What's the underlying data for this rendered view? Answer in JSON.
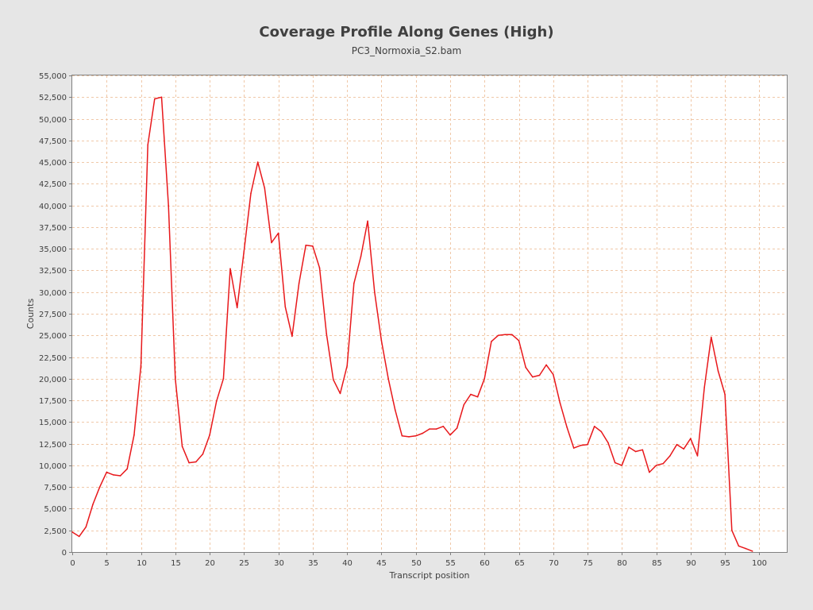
{
  "chart_data": {
    "type": "line",
    "title": "Coverage Profile Along Genes (High)",
    "subtitle": "PC3_Normoxia_S2.bam",
    "xlabel": "Transcript position",
    "ylabel": "Counts",
    "xlim": [
      0,
      104
    ],
    "ylim": [
      0,
      55000
    ],
    "x_ticks": [
      0,
      5,
      10,
      15,
      20,
      25,
      30,
      35,
      40,
      45,
      50,
      55,
      60,
      65,
      70,
      75,
      80,
      85,
      90,
      95,
      100
    ],
    "y_ticks": [
      0,
      2500,
      5000,
      7500,
      10000,
      12500,
      15000,
      17500,
      20000,
      22500,
      25000,
      27500,
      30000,
      32500,
      35000,
      37500,
      40000,
      42500,
      45000,
      47500,
      50000,
      52500,
      55000
    ],
    "x_tick_labels": [
      "0",
      "5",
      "10",
      "15",
      "20",
      "25",
      "30",
      "35",
      "40",
      "45",
      "50",
      "55",
      "60",
      "65",
      "70",
      "75",
      "80",
      "85",
      "90",
      "95",
      "100"
    ],
    "y_tick_labels": [
      "0",
      "2,500",
      "5,000",
      "7,500",
      "10,000",
      "12,500",
      "15,000",
      "17,500",
      "20,000",
      "22,500",
      "25,000",
      "27,500",
      "30,000",
      "32,500",
      "35,000",
      "37,500",
      "40,000",
      "42,500",
      "45,000",
      "47,500",
      "50,000",
      "52,500",
      "55,000"
    ],
    "grid": true,
    "line_color": "#e8181b",
    "grid_color": "#f0c8a8",
    "series": [
      {
        "x": [
          0,
          1,
          2,
          3,
          4,
          5,
          6,
          7,
          8,
          9,
          10,
          11,
          12,
          13,
          14,
          15,
          16,
          17,
          18,
          19,
          20,
          21,
          22,
          23,
          24,
          25,
          26,
          27,
          28,
          29,
          30,
          31,
          32,
          33,
          34,
          35,
          36,
          37,
          38,
          39,
          40,
          41,
          42,
          43,
          44,
          45,
          46,
          47,
          48,
          49,
          50,
          51,
          52,
          53,
          54,
          55,
          56,
          57,
          58,
          59,
          60,
          61,
          62,
          63,
          64,
          65,
          66,
          67,
          68,
          69,
          70,
          71,
          72,
          73,
          74,
          75,
          76,
          77,
          78,
          79,
          80,
          81,
          82,
          83,
          84,
          85,
          86,
          87,
          88,
          89,
          90,
          91,
          92,
          93,
          94,
          95,
          96,
          97,
          98,
          99
        ],
        "values": [
          2300,
          1800,
          2900,
          5500,
          7500,
          9200,
          8900,
          8800,
          9600,
          13500,
          21500,
          47000,
          52300,
          52500,
          40000,
          20000,
          12200,
          10300,
          10400,
          11300,
          13500,
          17400,
          20000,
          32700,
          28200,
          34700,
          41400,
          45000,
          42000,
          35700,
          36800,
          28300,
          24900,
          31000,
          35400,
          35300,
          32800,
          25200,
          19900,
          18300,
          21500,
          31000,
          34100,
          38200,
          30000,
          24400,
          20000,
          16400,
          13400,
          13300,
          13400,
          13700,
          14200,
          14200,
          14500,
          13500,
          14300,
          17000,
          18200,
          17900,
          20000,
          24300,
          25000,
          25100,
          25100,
          24400,
          21300,
          20200,
          20400,
          21600,
          20500,
          17200,
          14400,
          12000,
          12300,
          12400,
          14500,
          13900,
          12600,
          10300,
          10000,
          12100,
          11600,
          11800,
          9200,
          10000,
          10200,
          11100,
          12400,
          11900,
          13100,
          11100,
          19000,
          24800,
          20900,
          18200,
          2500,
          700,
          400,
          100
        ]
      }
    ]
  }
}
